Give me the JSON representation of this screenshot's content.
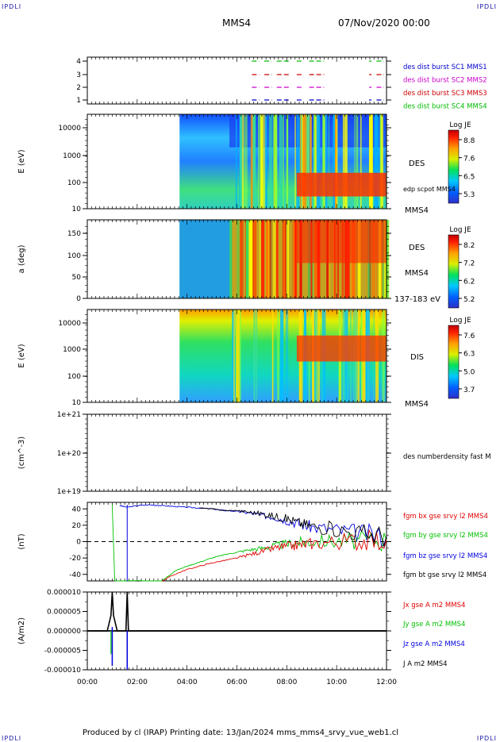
{
  "corner_label": "IPDLI",
  "header": {
    "spacecraft": "MMS4",
    "datetime": "07/Nov/2020 00:00"
  },
  "footer": {
    "text": "Produced by cl (IRAP)   Printing date: 13/Jan/2024   mms_mms4_srvy_vue_web1.cl"
  },
  "colors": {
    "bx": "#e00000",
    "by": "#00c000",
    "bz": "#0000e0",
    "bt": "#000000",
    "sc1": "#0000cc",
    "sc2": "#cc00cc",
    "sc3": "#cc0000",
    "sc4": "#00bb00"
  },
  "chart_data": [
    {
      "type": "timeline",
      "y_ticks": [
        "1",
        "2",
        "3",
        "4"
      ],
      "legend": [
        "des dist burst SC1 MMS1",
        "des dist burst SC2 MMS2",
        "des dist burst SC3 MMS3",
        "des dist burst SC4 MMS4"
      ],
      "segments_hours": [
        [
          6.6,
          6.9
        ],
        [
          7.1,
          7.4
        ],
        [
          7.6,
          8.1
        ],
        [
          8.4,
          8.6
        ],
        [
          8.9,
          9.5
        ],
        [
          11.3,
          11.4
        ],
        [
          11.6,
          11.9
        ]
      ]
    },
    {
      "type": "heatmap",
      "ylabel": "E (eV)",
      "yscale": "log",
      "ylim": [
        10,
        30000
      ],
      "y_ticks": [
        "10000",
        "1000",
        "100",
        "10"
      ],
      "side_label": "DES",
      "extra_label": "edp scpot MMS4",
      "sub_label": "MMS4",
      "colorbar": {
        "title": "Log JE",
        "ticks": [
          "8.8",
          "7.6",
          "6.5",
          "5.3"
        ]
      }
    },
    {
      "type": "heatmap",
      "ylabel": "a (deg)",
      "ylim": [
        0,
        180
      ],
      "y_ticks": [
        "150",
        "100",
        "50",
        "0"
      ],
      "side_label": "DES",
      "sub_label": "MMS4",
      "extra_label": "137-183 eV",
      "colorbar": {
        "title": "Log JE",
        "ticks": [
          "8.2",
          "7.2",
          "6.2",
          "5.2"
        ]
      }
    },
    {
      "type": "heatmap",
      "ylabel": "E (eV)",
      "yscale": "log",
      "ylim": [
        10,
        30000
      ],
      "y_ticks": [
        "10000",
        "1000",
        "100",
        "10"
      ],
      "side_label": "DIS",
      "sub_label": "MMS4",
      "colorbar": {
        "title": "Log JE",
        "ticks": [
          "7.6",
          "6.3",
          "5.0",
          "3.7"
        ]
      }
    },
    {
      "type": "line",
      "ylabel": "(cm^-3)",
      "yscale": "log",
      "y_ticks": [
        "1e+21",
        "1e+20",
        "1e+19"
      ],
      "legend": [
        "des numberdensity fast M"
      ],
      "series": []
    },
    {
      "type": "line",
      "ylabel": "(nT)",
      "ylim": [
        -48,
        48
      ],
      "y_ticks": [
        "40",
        "20",
        "0",
        "-20",
        "-40"
      ],
      "legend": [
        "fgm bx gse srvy l2 MMS4",
        "fgm by gse srvy l2 MMS4",
        "fgm bz gse srvy l2 MMS4",
        "fgm bt gse srvy l2 MMS4"
      ],
      "series": [
        {
          "name": "fgm bz gse srvy l2 MMS4",
          "x": [
            1.3,
            1.6,
            2.0,
            2.5,
            3.0,
            3.5,
            4.0,
            4.5,
            5.0,
            5.5,
            6.0,
            6.5,
            7.0,
            7.5,
            8.0,
            8.5,
            9.0,
            10.0,
            11.0,
            12.0
          ],
          "y": [
            44,
            42,
            44,
            45,
            44,
            43,
            42,
            41,
            40,
            38,
            37,
            35,
            32,
            30,
            26,
            22,
            18,
            14,
            10,
            6
          ]
        },
        {
          "name": "fgm by gse srvy l2 MMS4",
          "x": [
            1.0,
            1.1,
            3.0,
            3.5,
            4.0,
            4.5,
            5.0,
            5.5,
            6.0,
            6.5,
            7.0,
            7.5,
            8.0,
            8.5,
            9.0,
            10.0,
            11.0,
            12.0
          ],
          "y": [
            45,
            -48,
            -48,
            -36,
            -30,
            -25,
            -20,
            -16,
            -13,
            -10,
            -8,
            -5,
            -3,
            -1,
            0,
            1,
            1,
            2
          ]
        },
        {
          "name": "fgm bx gse srvy l2 MMS4",
          "x": [
            3.0,
            3.5,
            4.0,
            4.5,
            5.0,
            5.5,
            6.0,
            6.5,
            7.0,
            7.5,
            8.0,
            8.5,
            9.0,
            10.0,
            11.0,
            12.0
          ],
          "y": [
            -48,
            -40,
            -34,
            -30,
            -26,
            -23,
            -20,
            -16,
            -12,
            -8,
            -6,
            -4,
            -2,
            0,
            1,
            2
          ]
        },
        {
          "name": "fgm bt gse srvy l2 MMS4",
          "x": [
            4.5,
            5.0,
            5.5,
            6.0,
            6.5,
            7.0,
            7.5,
            8.0,
            8.5,
            9.0,
            10.0,
            11.0,
            12.0
          ],
          "y": [
            41,
            40,
            38,
            38,
            36,
            34,
            31,
            28,
            23,
            19,
            15,
            10,
            7
          ]
        }
      ]
    },
    {
      "type": "line",
      "ylabel": "(A/m2)",
      "ylim": [
        -1e-05,
        1e-05
      ],
      "y_ticks": [
        "0.000010",
        "0.000005",
        "0.000000",
        "-0.000005",
        "-0.000010"
      ],
      "legend": [
        "Jx gse A m2 MMS4",
        "Jy gse A m2 MMS4",
        "Jz gse A m2 MMS4",
        "J A m2 MMS4"
      ],
      "series": [
        {
          "name": "J A m2 MMS4",
          "x": [
            0.0,
            0.8,
            0.95,
            1.0,
            1.05,
            1.2,
            1.55,
            1.6,
            1.65,
            2.0,
            12.0
          ],
          "y": [
            0,
            0,
            4e-06,
            1e-05,
            4e-06,
            0,
            0,
            1e-05,
            0,
            0,
            0
          ]
        }
      ]
    }
  ],
  "x_axis": {
    "ticks": [
      "00:00",
      "02:00",
      "04:00",
      "06:00",
      "08:00",
      "10:00",
      "12:00"
    ],
    "range_hours": [
      0,
      12
    ]
  }
}
